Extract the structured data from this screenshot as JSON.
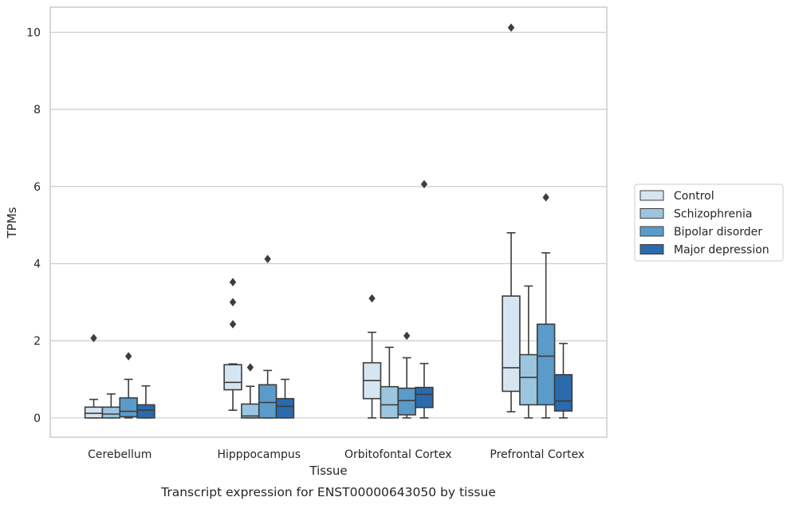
{
  "chart_data": {
    "type": "boxplot",
    "title": "Transcript expression for ENST00000643050 by tissue",
    "xlabel": "Tissue",
    "ylabel": "TPMs",
    "ylim": [
      -0.5,
      10.65
    ],
    "yticks": [
      0,
      2,
      4,
      6,
      8,
      10
    ],
    "grid": "horizontal",
    "legend_position": "right",
    "categories": [
      "Cerebellum",
      "Hipppocampus",
      "Orbitofontal Cortex",
      "Prefrontal Cortex"
    ],
    "series": [
      {
        "name": "Control",
        "color": "#d6e5f2",
        "boxes": [
          {
            "q1": 0.0,
            "median": 0.12,
            "q3": 0.28,
            "whisker_low": 0.0,
            "whisker_high": 0.48,
            "outliers": [
              2.07
            ]
          },
          {
            "q1": 0.73,
            "median": 0.92,
            "q3": 1.38,
            "whisker_low": 0.2,
            "whisker_high": 1.4,
            "outliers": [
              2.43,
              3.0,
              3.52
            ]
          },
          {
            "q1": 0.5,
            "median": 0.97,
            "q3": 1.43,
            "whisker_low": 0.0,
            "whisker_high": 2.22,
            "outliers": [
              3.1
            ]
          },
          {
            "q1": 0.69,
            "median": 1.3,
            "q3": 3.16,
            "whisker_low": 0.16,
            "whisker_high": 4.8,
            "outliers": [
              10.12
            ]
          }
        ]
      },
      {
        "name": "Schizophrenia",
        "color": "#9ac6df",
        "boxes": [
          {
            "q1": 0.0,
            "median": 0.1,
            "q3": 0.28,
            "whisker_low": 0.0,
            "whisker_high": 0.62,
            "outliers": []
          },
          {
            "q1": 0.0,
            "median": 0.05,
            "q3": 0.36,
            "whisker_low": 0.0,
            "whisker_high": 0.82,
            "outliers": [
              1.31
            ]
          },
          {
            "q1": 0.0,
            "median": 0.34,
            "q3": 0.81,
            "whisker_low": 0.0,
            "whisker_high": 1.83,
            "outliers": []
          },
          {
            "q1": 0.34,
            "median": 1.05,
            "q3": 1.64,
            "whisker_low": 0.0,
            "whisker_high": 3.42,
            "outliers": []
          }
        ]
      },
      {
        "name": "Bipolar disorder",
        "color": "#5a9bc9",
        "boxes": [
          {
            "q1": 0.03,
            "median": 0.17,
            "q3": 0.52,
            "whisker_low": 0.0,
            "whisker_high": 1.0,
            "outliers": [
              1.6
            ]
          },
          {
            "q1": 0.0,
            "median": 0.4,
            "q3": 0.86,
            "whisker_low": 0.0,
            "whisker_high": 1.23,
            "outliers": [
              4.12
            ]
          },
          {
            "q1": 0.08,
            "median": 0.45,
            "q3": 0.77,
            "whisker_low": 0.0,
            "whisker_high": 1.56,
            "outliers": [
              2.13
            ]
          },
          {
            "q1": 0.34,
            "median": 1.6,
            "q3": 2.43,
            "whisker_low": 0.0,
            "whisker_high": 4.28,
            "outliers": [
              5.72
            ]
          }
        ]
      },
      {
        "name": "Major depression",
        "color": "#2a6aad",
        "boxes": [
          {
            "q1": 0.0,
            "median": 0.2,
            "q3": 0.34,
            "whisker_low": 0.0,
            "whisker_high": 0.83,
            "outliers": []
          },
          {
            "q1": 0.0,
            "median": 0.3,
            "q3": 0.5,
            "whisker_low": 0.0,
            "whisker_high": 1.0,
            "outliers": []
          },
          {
            "q1": 0.27,
            "median": 0.61,
            "q3": 0.79,
            "whisker_low": 0.0,
            "whisker_high": 1.41,
            "outliers": [
              6.06
            ]
          },
          {
            "q1": 0.18,
            "median": 0.44,
            "q3": 1.12,
            "whisker_low": 0.0,
            "whisker_high": 1.93,
            "outliers": []
          }
        ]
      }
    ]
  }
}
